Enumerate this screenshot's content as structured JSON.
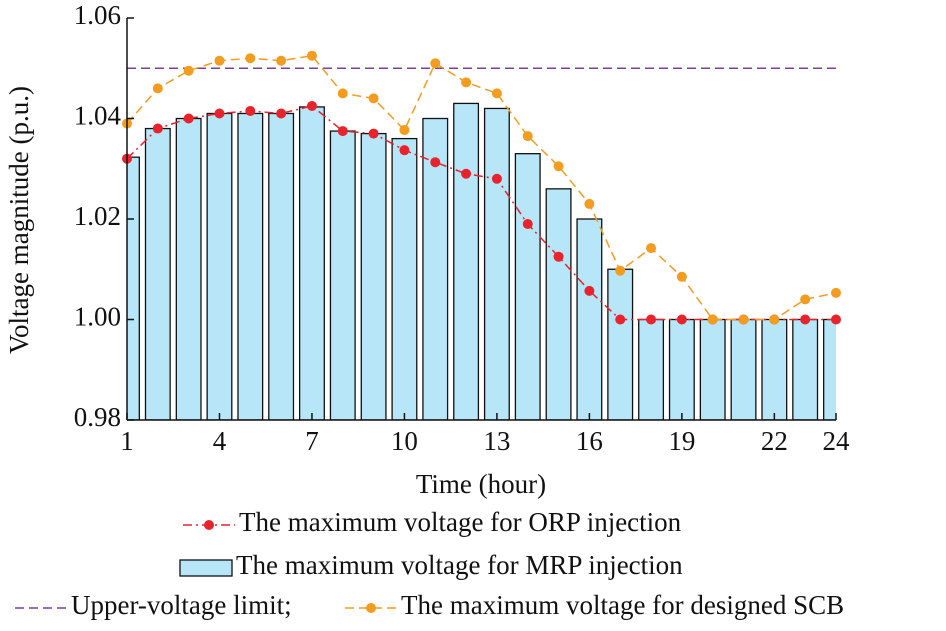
{
  "chart_data": {
    "type": "combo",
    "x_label": "Time (hour)",
    "y_label": "Voltage magnitude (p.u.)",
    "x": [
      1,
      2,
      3,
      4,
      5,
      6,
      7,
      8,
      9,
      10,
      11,
      12,
      13,
      14,
      15,
      16,
      17,
      18,
      19,
      20,
      21,
      22,
      23,
      24
    ],
    "xlim": [
      1,
      24
    ],
    "xticks": [
      1,
      4,
      7,
      10,
      13,
      16,
      19,
      22,
      24
    ],
    "ylim": [
      0.98,
      1.06
    ],
    "yticks": [
      0.98,
      {
        "value": 1.0,
        "label": "1.00"
      },
      1.02,
      1.04,
      1.06
    ],
    "series": [
      {
        "name": "The maximum voltage for ORP injection",
        "type": "line",
        "color": "#e8232d",
        "dash": "dashdot",
        "values": [
          1.032,
          1.038,
          1.04,
          1.041,
          1.0415,
          1.041,
          1.0425,
          1.0375,
          1.037,
          1.0337,
          1.0313,
          1.029,
          1.028,
          1.019,
          1.0125,
          1.0057,
          1.0,
          1.0,
          1.0,
          1.0,
          1.0,
          1.0,
          1.0,
          1.0
        ]
      },
      {
        "name": "The maximum voltage for MRP injection",
        "type": "bar",
        "color": "#b6e6f7",
        "values": [
          1.0323,
          1.038,
          1.04,
          1.041,
          1.041,
          1.041,
          1.0423,
          1.0375,
          1.037,
          1.036,
          1.04,
          1.043,
          1.042,
          1.033,
          1.026,
          1.02,
          1.01,
          1.0,
          1.0,
          1.0,
          1.0,
          1.0,
          1.0,
          1.0
        ]
      },
      {
        "name": "Upper-voltage limit;",
        "type": "hline",
        "color": "#7b3fa0",
        "dash": "dashed",
        "value": 1.05
      },
      {
        "name": "The maximum voltage for designed SCB",
        "type": "line",
        "color": "#f39c1f",
        "dash": "dashed",
        "values": [
          1.039,
          1.046,
          1.0495,
          1.0515,
          1.052,
          1.0515,
          1.0525,
          1.045,
          1.044,
          1.0377,
          1.051,
          1.0472,
          1.045,
          1.0365,
          1.0305,
          1.023,
          1.0097,
          1.0142,
          1.0085,
          1.0,
          1.0,
          1.0,
          1.004,
          1.0053
        ]
      }
    ]
  }
}
